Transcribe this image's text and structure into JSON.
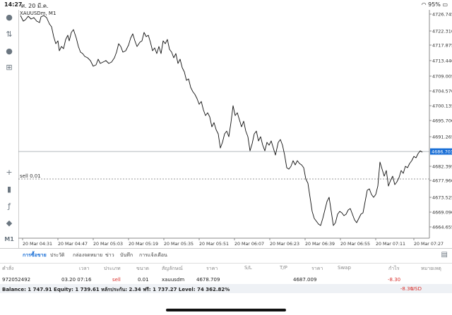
{
  "status": {
    "time": "14:27",
    "date": "ศ. 20 มี.ค.",
    "wifi": "wifi-icon",
    "battery": "95%"
  },
  "chart": {
    "symbol": "XAUUSDm, M1",
    "current_price": "4686.701",
    "sell_label": "sell 0.01",
    "y_ticks": [
      "4726.745",
      "4722.310",
      "4717.875",
      "4713.440",
      "4709.005",
      "4704.570",
      "4700.135",
      "4695.700",
      "4691.265",
      "4682.395",
      "4677.960",
      "4673.525",
      "4669.090",
      "4664.655"
    ],
    "x_ticks": [
      "20 Mar 04:31",
      "20 Mar 04:47",
      "20 Mar 05:03",
      "20 Mar 05:19",
      "20 Mar 05:35",
      "20 Mar 05:51",
      "20 Mar 06:07",
      "20 Mar 06:23",
      "20 Mar 06:39",
      "20 Mar 06:55",
      "20 Mar 07:11",
      "20 Mar 07:27"
    ],
    "colors": {
      "line": "#111111",
      "accent": "#1a6fd6",
      "loss": "#d9302c"
    }
  },
  "sidebar": {
    "icons": [
      "account-icon",
      "trade-icon",
      "chat-icon",
      "add-document-icon",
      "crosshair-icon",
      "candles-icon",
      "indicator-icon",
      "objects-icon"
    ],
    "timeframe": "M1"
  },
  "tabs": [
    "การซื้อขาย",
    "ประวัติ",
    "กล่องจดหมาย",
    "ข่าว",
    "บันทึก",
    "การแจ้งเตือน"
  ],
  "trade_table": {
    "headers": [
      "คำสั่ง",
      "เวลา",
      "ประเภท",
      "ขนาด",
      "สัญลักษณ์",
      "ราคา",
      "S/L",
      "T/P",
      "ราคา",
      "Swap",
      "กำไร",
      "หมายเหตุ"
    ],
    "row": {
      "order": "972052492",
      "time": "03.20 07:16",
      "type": "sell",
      "size": "0.01",
      "symbol": "xauusdm",
      "open_price": "4678.709",
      "price": "4687.009",
      "profit": "-8.30"
    }
  },
  "balance": {
    "text": "Balance: 1 747.91 Equity: 1 739.61 หลักประกัน: 2.34 ฟรี: 1 737.27 Level: 74 362.82%",
    "profit": "-8.30",
    "currency": "USD"
  }
}
